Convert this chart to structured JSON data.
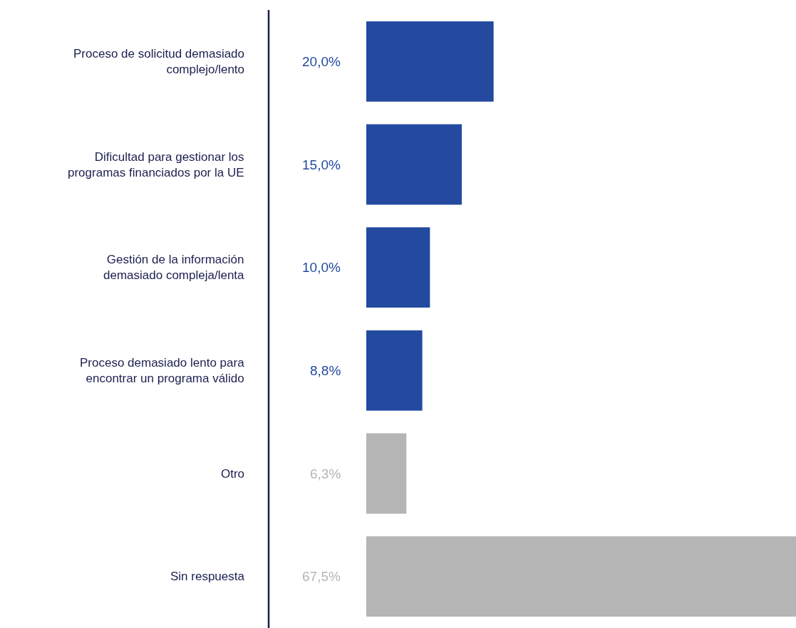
{
  "chart_data": {
    "type": "bar",
    "orientation": "horizontal",
    "categories": [
      "Proceso de solicitud demasiado complejo/lento",
      "Dificultad para gestionar los programas financiados por la UE",
      "Gestión de la información demasiado compleja/lenta",
      "Proceso demasiado lento para encontrar un programa válido",
      "Otro",
      "Sin respuesta"
    ],
    "values": [
      20.0,
      15.0,
      10.0,
      8.8,
      6.3,
      67.5
    ],
    "value_labels": [
      "20,0%",
      "15,0%",
      "10,0%",
      "8,8%",
      "6,3%",
      "67,5%"
    ],
    "colors": [
      "#234a9f",
      "#234a9f",
      "#234a9f",
      "#234a9f",
      "#b5b5b5",
      "#b5b5b5"
    ],
    "legend": false
  }
}
